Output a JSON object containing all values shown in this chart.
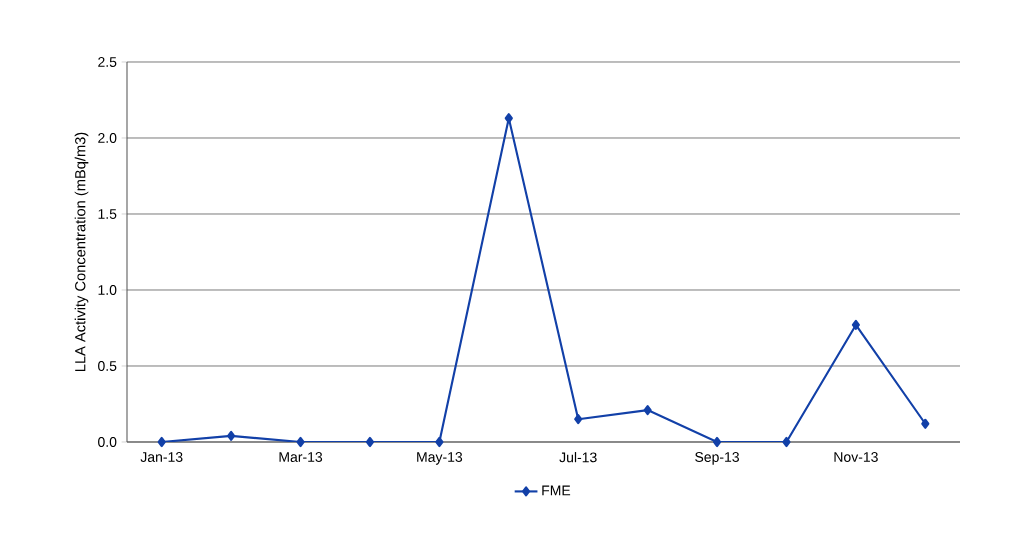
{
  "chart_data": {
    "type": "line",
    "ylabel": "LLA Activity Concentration (mBq/m3)",
    "categories": [
      "Jan-13",
      null,
      "Mar-13",
      null,
      "May-13",
      null,
      "Jul-13",
      null,
      "Sep-13",
      null,
      "Nov-13",
      null
    ],
    "series": [
      {
        "name": "FME",
        "color": "#1240a8",
        "values": [
          0,
          0.04,
          0,
          0,
          0,
          2.13,
          0.15,
          0.21,
          0,
          0,
          0.77,
          0.12
        ]
      }
    ],
    "ylim": [
      0,
      2.5
    ],
    "yticks": [
      {
        "value": 0,
        "label": "0.0"
      },
      {
        "value": 0.5,
        "label": "0.5"
      },
      {
        "value": 1,
        "label": "1.0"
      },
      {
        "value": 1.5,
        "label": "1.5"
      },
      {
        "value": 2,
        "label": "2.0"
      },
      {
        "value": 2.5,
        "label": "2.5"
      }
    ],
    "grid": "y",
    "legend": "bottom",
    "marker": "diamond",
    "line_style": "solid"
  }
}
